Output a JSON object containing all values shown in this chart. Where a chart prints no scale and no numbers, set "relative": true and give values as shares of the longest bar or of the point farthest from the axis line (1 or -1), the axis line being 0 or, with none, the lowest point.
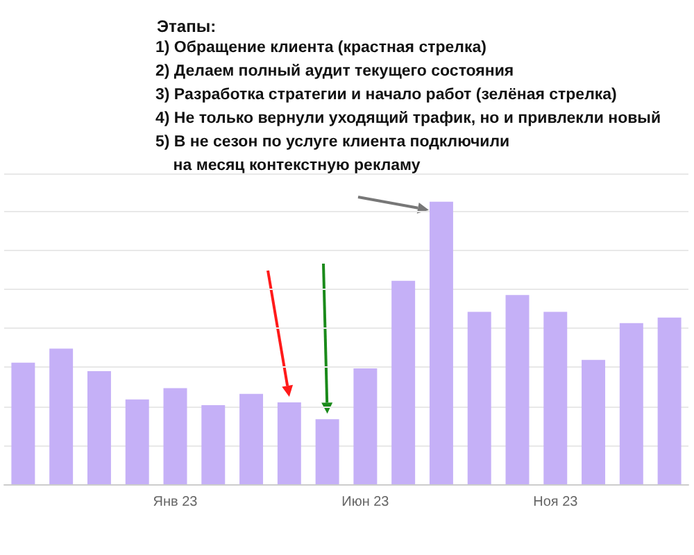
{
  "chart_data": {
    "type": "bar",
    "title": "Этапы:",
    "annotations": [
      "1) Обращение клиента (крастная стрелка)",
      "2) Делаем полный аудит текущего состояния",
      "3) Разработка стратегии и начало работ (зелёная стрелка)",
      "4) Не только вернули уходящий трафик, но и привлекли новый",
      "5) В не сезон по услуге клиента подключили\n    на месяц контекстную рекламу"
    ],
    "categories": [
      null,
      null,
      null,
      null,
      "Янв 23",
      null,
      null,
      null,
      null,
      "Июн 23",
      null,
      null,
      null,
      null,
      "Ноя 23",
      null,
      null,
      null
    ],
    "values": [
      0.43,
      0.48,
      0.4,
      0.3,
      0.34,
      0.28,
      0.32,
      0.29,
      0.23,
      0.41,
      0.72,
      1,
      0.61,
      0.67,
      0.61,
      0.44,
      0.57,
      0.59
    ],
    "color": "#c5b0f7",
    "relative": true,
    "grid": "y"
  }
}
